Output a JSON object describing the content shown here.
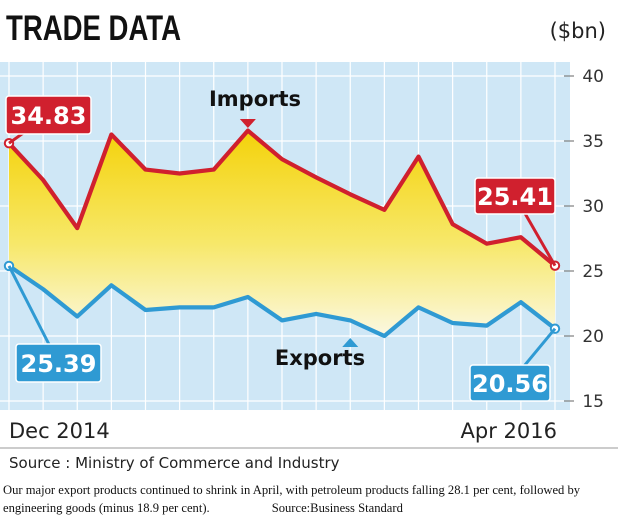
{
  "chart_data": {
    "type": "area",
    "title": "TRADE DATA",
    "unit_label": "($bn)",
    "ylim": [
      15,
      40
    ],
    "yticks": [
      15,
      20,
      25,
      30,
      35,
      40
    ],
    "x_start_label": "Dec 2014",
    "x_end_label": "Apr 2016",
    "x": [
      "Dec 2014",
      "Jan 2015",
      "Feb 2015",
      "Mar 2015",
      "Apr 2015",
      "May 2015",
      "Jun 2015",
      "Jul 2015",
      "Aug 2015",
      "Sep 2015",
      "Oct 2015",
      "Nov 2015",
      "Dec 2015",
      "Jan 2016",
      "Feb 2016",
      "Mar 2016",
      "Apr 2016"
    ],
    "grid": true,
    "series": [
      {
        "name": "Imports",
        "color": "#d0202e",
        "values": [
          34.83,
          32.0,
          28.3,
          35.5,
          32.8,
          32.5,
          32.8,
          35.8,
          33.6,
          32.2,
          30.9,
          29.7,
          33.8,
          28.6,
          27.1,
          27.6,
          25.41
        ],
        "start_label": "34.83",
        "end_label": "25.41"
      },
      {
        "name": "Exports",
        "color": "#2f9ad3",
        "values": [
          25.39,
          23.6,
          21.5,
          23.9,
          22.0,
          22.2,
          22.2,
          23.0,
          21.2,
          21.7,
          21.2,
          20.0,
          22.2,
          21.0,
          20.8,
          22.6,
          20.56
        ],
        "start_label": "25.39",
        "end_label": "20.56"
      }
    ],
    "colors": {
      "plot_bg": "#cfe7f6",
      "grid": "#ffffff",
      "fill_top": "#f4d20a",
      "fill_bottom": "#fbf8e2"
    },
    "source": "Source : Ministry of Commerce and Industry"
  },
  "caption": {
    "text": "Our major export products continued to shrink in April, with petroleum products falling 28.1 per cent, followed by engineering goods (minus 18.9 per cent).",
    "source": "Source:Business Standard"
  }
}
